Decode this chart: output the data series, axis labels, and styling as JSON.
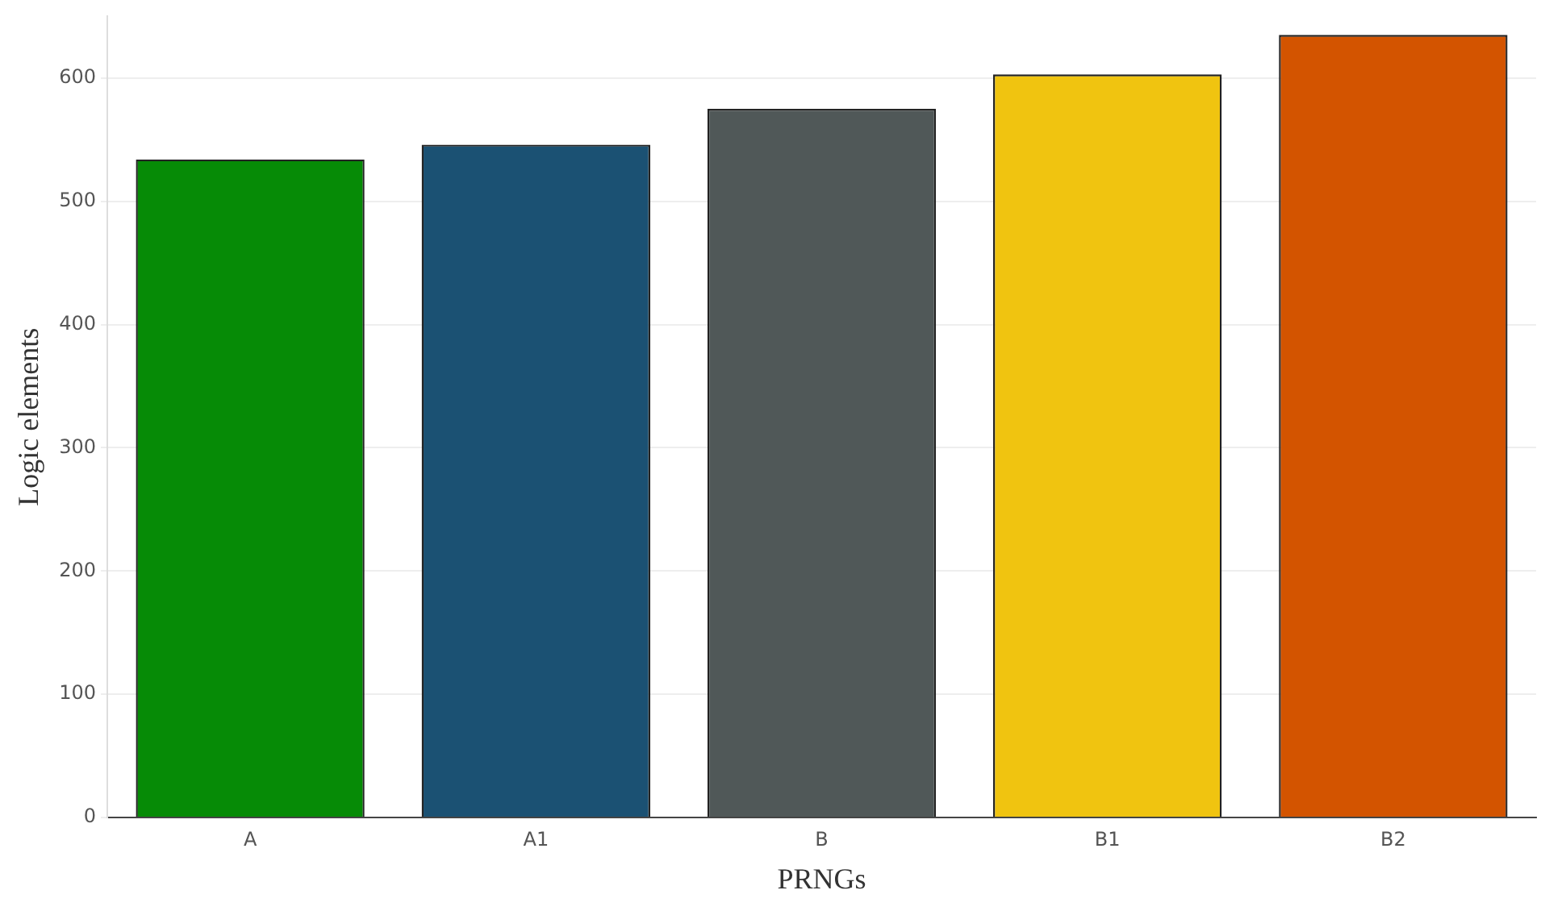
{
  "chart_data": {
    "type": "bar",
    "xlabel": "PRNGs",
    "ylabel": "Logic elements",
    "categories": [
      "A",
      "A1",
      "B",
      "B1",
      "B2"
    ],
    "values": [
      534,
      546,
      575,
      603,
      635
    ],
    "colors": [
      "#068b06",
      "#1b5173",
      "#505858",
      "#f0c410",
      "#d35400"
    ],
    "ylim": [
      0,
      650
    ],
    "yticks": [
      0,
      100,
      200,
      300,
      400,
      500,
      600
    ],
    "grid": "y",
    "legend": false
  }
}
